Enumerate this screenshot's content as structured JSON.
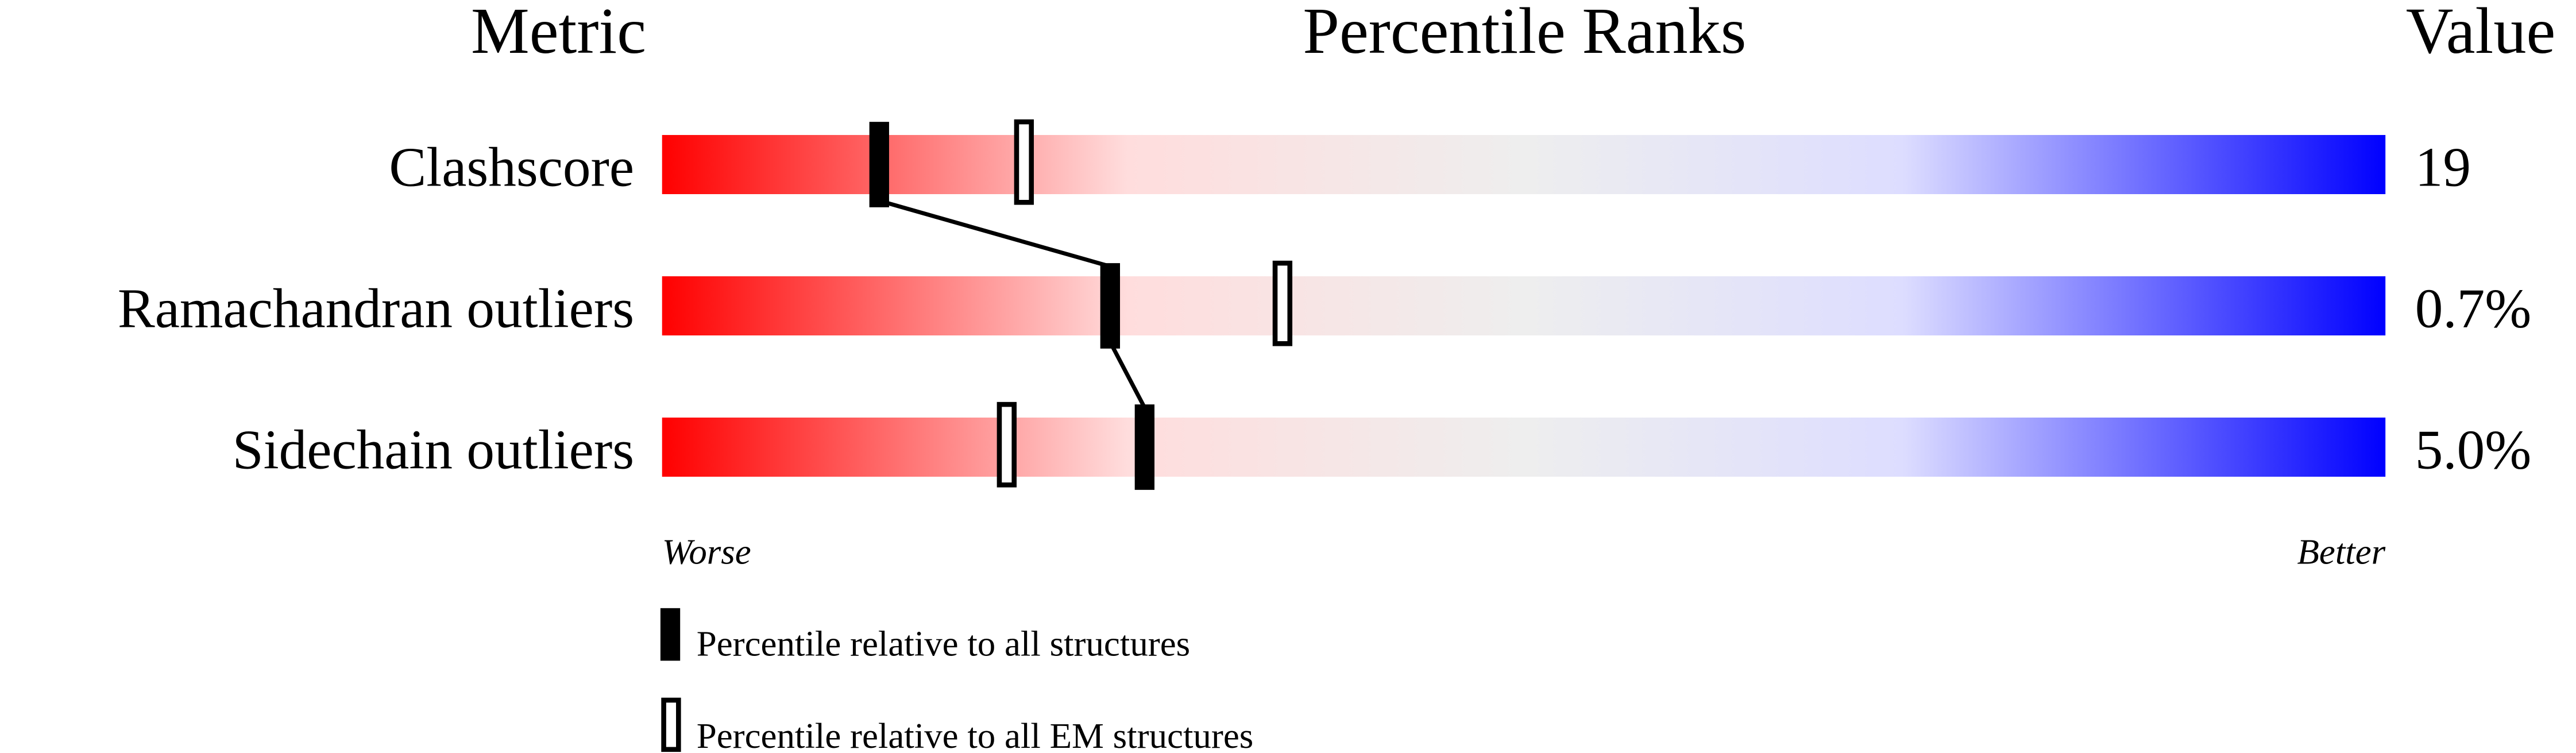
{
  "chart_data": {
    "type": "bar",
    "title": "Percentile Ranks",
    "headers": {
      "metric": "Metric",
      "ranks": "Percentile Ranks",
      "value": "Value"
    },
    "xlim": [
      0,
      100
    ],
    "axis_labels": {
      "left": "Worse",
      "right": "Better"
    },
    "gradient_colors": [
      "#ff0000",
      "#ffdddd",
      "#eeeeee",
      "#ddddff",
      "#0000ff"
    ],
    "rows": [
      {
        "metric": "Clashscore",
        "value": "19",
        "percentile_all": 12.6,
        "percentile_em": 21
      },
      {
        "metric": "Ramachandran outliers",
        "value": "0.7%",
        "percentile_all": 26,
        "percentile_em": 36
      },
      {
        "metric": "Sidechain outliers",
        "value": "5.0%",
        "percentile_all": 28,
        "percentile_em": 20
      }
    ],
    "legend": [
      {
        "label": "Percentile relative to all structures",
        "marker": "filled"
      },
      {
        "label": "Percentile relative to all EM structures",
        "marker": "open"
      }
    ]
  }
}
